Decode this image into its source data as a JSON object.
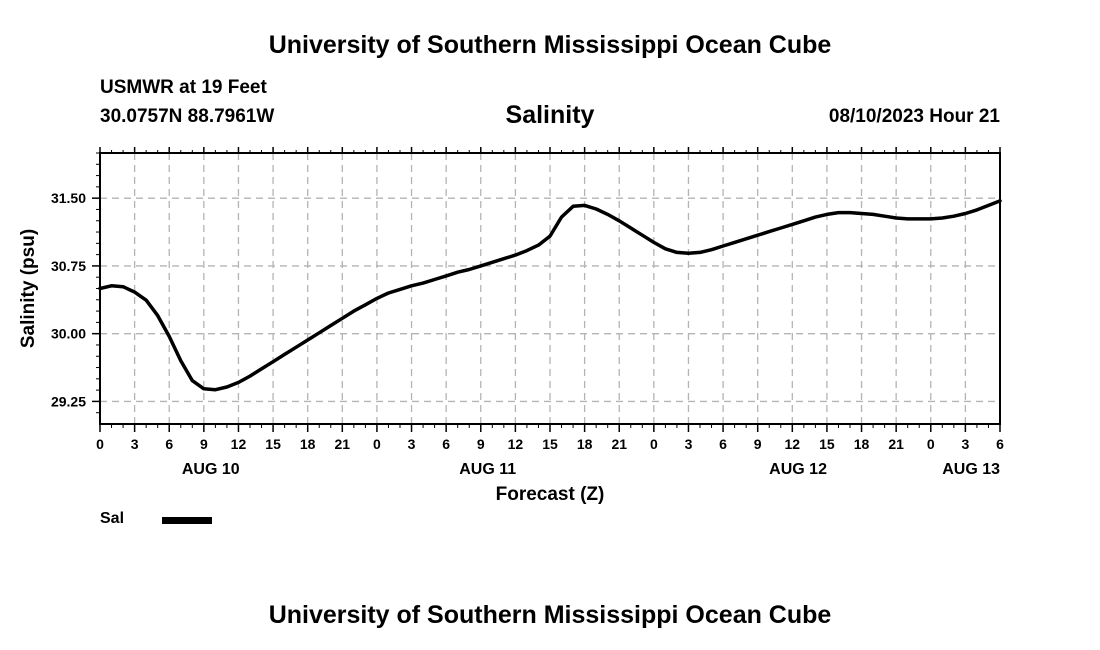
{
  "header": {
    "title": "University of Southern Mississippi Ocean Cube",
    "station": "USMWR at 19 Feet",
    "coordinates": "30.0757N  88.7961W",
    "datetime": "08/10/2023 Hour 21"
  },
  "footer": {
    "title": "University of Southern Mississippi Ocean Cube"
  },
  "legend": {
    "label": "Sal",
    "color": "#000000"
  },
  "chart_data": {
    "type": "line",
    "title": "Salinity",
    "xlabel": "Forecast (Z)",
    "ylabel": "Salinity (psu)",
    "xlim": [
      0,
      78
    ],
    "ylim": [
      29.0,
      32.0
    ],
    "grid": true,
    "x_ticks": [
      0,
      3,
      6,
      9,
      12,
      15,
      18,
      21,
      24,
      27,
      30,
      33,
      36,
      39,
      42,
      45,
      48,
      51,
      54,
      57,
      60,
      63,
      66,
      69,
      72,
      75,
      78
    ],
    "x_tick_labels": [
      "0",
      "3",
      "6",
      "9",
      "12",
      "15",
      "18",
      "21",
      "0",
      "3",
      "6",
      "9",
      "12",
      "15",
      "18",
      "21",
      "0",
      "3",
      "6",
      "9",
      "12",
      "15",
      "18",
      "21",
      "0",
      "3",
      "6"
    ],
    "y_ticks": [
      29.25,
      30.0,
      30.75,
      31.5
    ],
    "y_tick_labels": [
      "29.25",
      "30.00",
      "30.75",
      "31.50"
    ],
    "day_labels": [
      {
        "x": 9.6,
        "label": "AUG 10"
      },
      {
        "x": 33.6,
        "label": "AUG 11"
      },
      {
        "x": 60.5,
        "label": "AUG 12"
      },
      {
        "x": 75.5,
        "label": "AUG 13"
      }
    ],
    "series": [
      {
        "name": "Sal",
        "color": "#000000",
        "x": [
          0,
          1,
          2,
          3,
          4,
          5,
          6,
          7,
          8,
          9,
          10,
          11,
          12,
          13,
          14,
          15,
          16,
          17,
          18,
          19,
          20,
          21,
          22,
          23,
          24,
          25,
          26,
          27,
          28,
          29,
          30,
          31,
          32,
          33,
          34,
          35,
          36,
          37,
          38,
          39,
          40,
          41,
          42,
          43,
          44,
          45,
          46,
          47,
          48,
          49,
          50,
          51,
          52,
          53,
          54,
          55,
          56,
          57,
          58,
          59,
          60,
          61,
          62,
          63,
          64,
          65,
          66,
          67,
          68,
          69,
          70,
          71,
          72,
          73,
          74,
          75,
          76,
          77,
          78
        ],
        "y": [
          30.5,
          30.53,
          30.52,
          30.46,
          30.37,
          30.2,
          29.97,
          29.7,
          29.48,
          29.39,
          29.38,
          29.41,
          29.46,
          29.53,
          29.61,
          29.69,
          29.77,
          29.85,
          29.93,
          30.01,
          30.09,
          30.17,
          30.25,
          30.32,
          30.39,
          30.45,
          30.49,
          30.53,
          30.56,
          30.6,
          30.64,
          30.68,
          30.71,
          30.75,
          30.79,
          30.83,
          30.87,
          30.92,
          30.98,
          31.08,
          31.29,
          31.41,
          31.42,
          31.38,
          31.32,
          31.25,
          31.17,
          31.09,
          31.01,
          30.94,
          30.9,
          30.89,
          30.9,
          30.93,
          30.97,
          31.01,
          31.05,
          31.09,
          31.13,
          31.17,
          31.21,
          31.25,
          31.29,
          31.32,
          31.34,
          31.34,
          31.33,
          31.32,
          31.3,
          31.28,
          31.27,
          31.27,
          31.27,
          31.28,
          31.3,
          31.33,
          31.37,
          31.42,
          31.47
        ]
      }
    ]
  }
}
